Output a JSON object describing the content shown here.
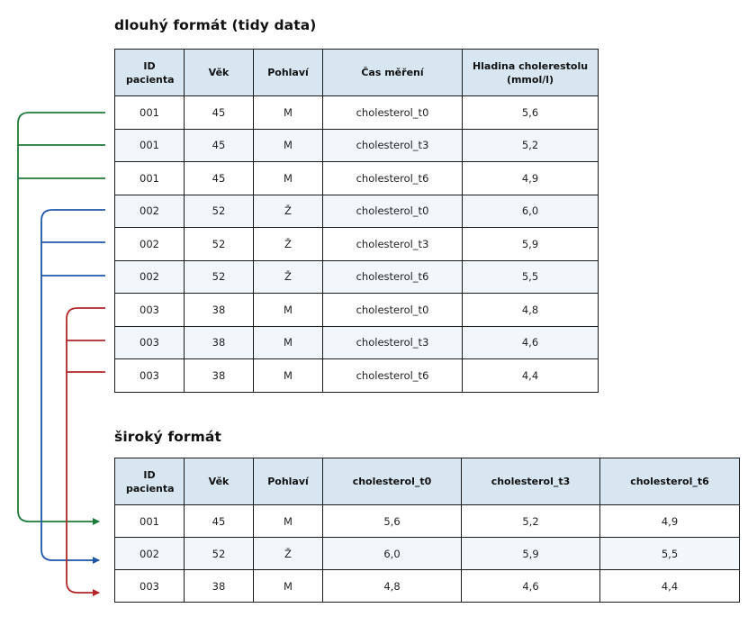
{
  "long_table": {
    "title": "dlouhý formát (tidy data)",
    "headers": [
      "ID pacienta",
      "Věk",
      "Pohlaví",
      "Čas měření",
      "Hladina cholerestolu (mmol/l)"
    ],
    "rows": [
      [
        "001",
        "45",
        "M",
        "cholesterol_t0",
        "5,6"
      ],
      [
        "001",
        "45",
        "M",
        "cholesterol_t3",
        "5,2"
      ],
      [
        "001",
        "45",
        "M",
        "cholesterol_t6",
        "4,9"
      ],
      [
        "002",
        "52",
        "Ž",
        "cholesterol_t0",
        "6,0"
      ],
      [
        "002",
        "52",
        "Ž",
        "cholesterol_t3",
        "5,9"
      ],
      [
        "002",
        "52",
        "Ž",
        "cholesterol_t6",
        "5,5"
      ],
      [
        "003",
        "38",
        "M",
        "cholesterol_t0",
        "4,8"
      ],
      [
        "003",
        "38",
        "M",
        "cholesterol_t3",
        "4,6"
      ],
      [
        "003",
        "38",
        "M",
        "cholesterol_t6",
        "4,4"
      ]
    ]
  },
  "wide_table": {
    "title": "široký formát",
    "headers": [
      "ID pacienta",
      "Věk",
      "Pohlaví",
      "cholesterol_t0",
      "cholesterol_t3",
      "cholesterol_t6"
    ],
    "rows": [
      [
        "001",
        "45",
        "M",
        "5,6",
        "5,2",
        "4,9"
      ],
      [
        "002",
        "52",
        "Ž",
        "6,0",
        "5,9",
        "5,5"
      ],
      [
        "003",
        "38",
        "M",
        "4,8",
        "4,6",
        "4,4"
      ]
    ]
  },
  "connectors": [
    {
      "patient": "001",
      "color": "#1e7a3a"
    },
    {
      "patient": "002",
      "color": "#1f56a8"
    },
    {
      "patient": "003",
      "color": "#b3262a"
    }
  ]
}
